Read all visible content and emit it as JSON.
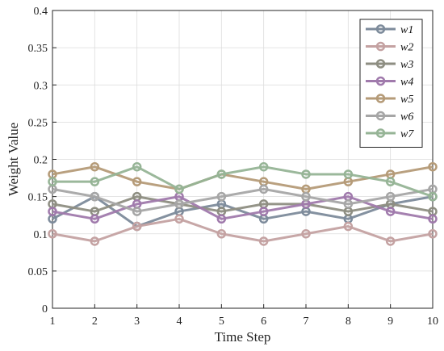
{
  "chart_data": {
    "type": "line",
    "xlabel": "Time Step",
    "ylabel": "Weight Value",
    "x": [
      1,
      2,
      3,
      4,
      5,
      6,
      7,
      8,
      9,
      10
    ],
    "xlim": [
      1,
      10
    ],
    "ylim": [
      0,
      0.4
    ],
    "xticks": [
      "1",
      "2",
      "3",
      "4",
      "5",
      "6",
      "7",
      "8",
      "9",
      "10"
    ],
    "yticks": [
      "0",
      "0.05",
      "0.1",
      "0.15",
      "0.2",
      "0.25",
      "0.3",
      "0.35",
      "0.4"
    ],
    "grid": true,
    "legend_position": "top-right",
    "series": [
      {
        "name": "w1",
        "color": "#7d8b9b",
        "values": [
          0.12,
          0.15,
          0.11,
          0.13,
          0.14,
          0.12,
          0.13,
          0.12,
          0.14,
          0.15
        ]
      },
      {
        "name": "w2",
        "color": "#c4a2a2",
        "values": [
          0.1,
          0.09,
          0.11,
          0.12,
          0.1,
          0.09,
          0.1,
          0.11,
          0.09,
          0.1
        ]
      },
      {
        "name": "w3",
        "color": "#8e8e82",
        "values": [
          0.14,
          0.13,
          0.15,
          0.14,
          0.13,
          0.14,
          0.14,
          0.13,
          0.14,
          0.13
        ]
      },
      {
        "name": "w4",
        "color": "#a07aac",
        "values": [
          0.13,
          0.12,
          0.14,
          0.15,
          0.12,
          0.13,
          0.14,
          0.15,
          0.13,
          0.12
        ]
      },
      {
        "name": "w5",
        "color": "#b59b78",
        "values": [
          0.18,
          0.19,
          0.17,
          0.16,
          0.18,
          0.17,
          0.16,
          0.17,
          0.18,
          0.19
        ]
      },
      {
        "name": "w6",
        "color": "#a6a6a6",
        "values": [
          0.16,
          0.15,
          0.13,
          0.14,
          0.15,
          0.16,
          0.15,
          0.14,
          0.15,
          0.16
        ]
      },
      {
        "name": "w7",
        "color": "#96b496",
        "values": [
          0.17,
          0.17,
          0.19,
          0.16,
          0.18,
          0.19,
          0.18,
          0.18,
          0.17,
          0.15
        ]
      }
    ]
  }
}
